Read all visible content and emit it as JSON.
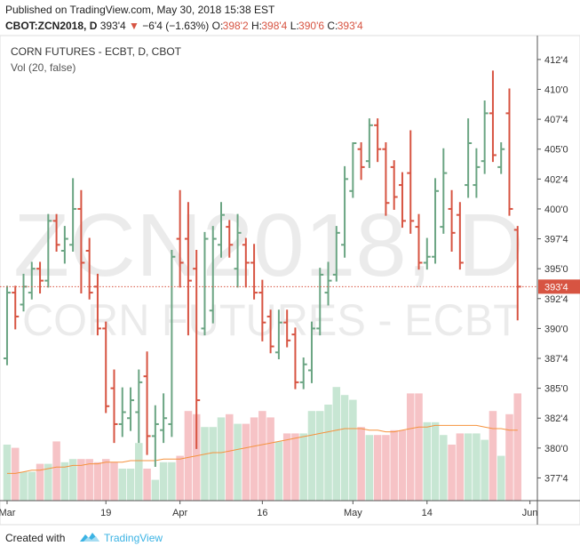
{
  "header": {
    "published": "Published on TradingView.com, May 30, 2018 15:38 EST",
    "symbol": "CBOT:ZCN2018, D",
    "last": "393'4",
    "arrow": "▼",
    "change": "−6'4 (−1.63%)",
    "ohlc": [
      {
        "key": "O:",
        "value": "398'2"
      },
      {
        "key": "H:",
        "value": "398'4"
      },
      {
        "key": "L:",
        "value": "390'6"
      },
      {
        "key": "C:",
        "value": "393'4"
      }
    ]
  },
  "footer": {
    "created": "Created with",
    "brand": "TradingView"
  },
  "chart_data": {
    "type": "ohlc",
    "title": "CORN FUTURES - ECBT, D, CBOT",
    "volume_label": "Vol (20, false)",
    "watermark": {
      "symbol": "ZCN2018, D",
      "description": "CORN FUTURES - ECBT"
    },
    "up_color": "#6ba583",
    "down_color": "#d75442",
    "volume_up_color": "#c7e6d3",
    "volume_down_color": "#f6c3c6",
    "volume_ma_color": "#f5923e",
    "xlim": [
      -0.86,
      64.4
    ],
    "xticks": [
      {
        "value": 0,
        "label": "Mar"
      },
      {
        "value": 12,
        "label": "19"
      },
      {
        "value": 21,
        "label": "Apr"
      },
      {
        "value": 31,
        "label": "16"
      },
      {
        "value": 42,
        "label": "May"
      },
      {
        "value": 51,
        "label": "14"
      },
      {
        "value": 63.5,
        "label": "Jun"
      }
    ],
    "ylim": [
      375.6,
      414.5
    ],
    "yticks": [
      {
        "value": 377.5,
        "label": "377'4"
      },
      {
        "value": 380,
        "label": "380'0"
      },
      {
        "value": 382.5,
        "label": "382'4"
      },
      {
        "value": 385,
        "label": "385'0"
      },
      {
        "value": 387.5,
        "label": "387'4"
      },
      {
        "value": 390,
        "label": "390'0"
      },
      {
        "value": 392.5,
        "label": "392'4"
      },
      {
        "value": 395,
        "label": "395'0"
      },
      {
        "value": 397.5,
        "label": "397'4"
      },
      {
        "value": 400,
        "label": "400'0"
      },
      {
        "value": 402.5,
        "label": "402'4"
      },
      {
        "value": 405,
        "label": "405'0"
      },
      {
        "value": 407.5,
        "label": "407'4"
      },
      {
        "value": 410,
        "label": "410'0"
      },
      {
        "value": 412.5,
        "label": "412'4"
      }
    ],
    "last_price": {
      "value": 393.5,
      "label": "393'4"
    },
    "grid": false,
    "open": [
      387.5,
      393,
      392,
      393,
      395,
      394,
      399,
      396.5,
      397,
      400,
      396.5,
      393.5,
      390,
      385,
      382,
      382.5,
      383,
      386,
      381,
      381.5,
      382,
      397.5,
      397.5,
      395,
      390,
      391.5,
      397,
      398.5,
      395,
      397,
      395.5,
      393,
      391,
      388,
      390.5,
      389.5,
      385.5,
      386.5,
      390,
      393,
      394.5,
      397,
      401.5,
      405,
      404,
      407,
      405,
      403.5,
      402,
      403,
      398.5,
      395.5,
      396,
      398.5,
      400,
      399.5,
      402,
      402,
      404,
      408,
      403.5,
      408,
      398.25
    ],
    "high": [
      393.5,
      393.5,
      394.5,
      395.5,
      395.5,
      399.5,
      399.5,
      398.5,
      402.5,
      401.5,
      397.5,
      394.5,
      390.5,
      386.5,
      385,
      385,
      386.5,
      388,
      383.5,
      384.5,
      396.5,
      401.5,
      400.5,
      396.5,
      398,
      398.5,
      400.5,
      399,
      399.5,
      397.5,
      397,
      394,
      391.5,
      391.5,
      391.5,
      390,
      387.5,
      390.5,
      395,
      395.5,
      398.5,
      403.5,
      405.5,
      405.5,
      407.5,
      407.5,
      405.5,
      404,
      403,
      406.5,
      399.5,
      397.5,
      402.5,
      405,
      401.5,
      400.5,
      407.5,
      405,
      409,
      411.5,
      405.5,
      410,
      398.5
    ],
    "low": [
      387,
      390,
      391.5,
      392.5,
      393,
      393.5,
      396.5,
      395.5,
      396.5,
      393,
      392.5,
      389.5,
      383,
      380.5,
      381,
      381.5,
      380.5,
      379.5,
      378.5,
      380.5,
      381,
      393.5,
      389.5,
      380,
      389.5,
      390.5,
      396,
      396,
      393.5,
      393.5,
      392.5,
      389,
      388,
      387.5,
      388.5,
      385,
      385,
      385.5,
      389.5,
      392,
      394,
      396,
      401,
      402.5,
      403.5,
      404,
      399.5,
      400,
      398.5,
      398,
      395,
      395,
      395.5,
      398,
      396.5,
      395,
      401,
      401,
      403,
      404,
      403,
      399.5,
      390.75
    ],
    "close": [
      393,
      391,
      393.5,
      395,
      394,
      399,
      397,
      397.5,
      400,
      395.5,
      393,
      390,
      383.5,
      382,
      383,
      384,
      385.5,
      381,
      382,
      382.5,
      396,
      395.5,
      394,
      384,
      397.5,
      397.5,
      399.5,
      397,
      398,
      395.5,
      393,
      390.5,
      388.5,
      390.5,
      389,
      385.5,
      387,
      390,
      394.5,
      394,
      398,
      402.5,
      405.5,
      403.5,
      407,
      405,
      400.5,
      401,
      399,
      399,
      395.5,
      396,
      401.5,
      403,
      398,
      395.5,
      405.5,
      403.5,
      408,
      404.5,
      405,
      400,
      393.5
    ],
    "volume_lim": [
      0,
      100
    ],
    "volume": [
      35,
      33,
      18,
      18,
      23,
      23,
      37,
      24,
      26,
      26,
      26,
      24,
      26,
      24,
      20,
      20,
      36,
      20,
      13,
      24,
      24,
      28,
      56,
      54,
      46,
      46,
      52,
      54,
      48,
      48,
      52,
      56,
      52,
      37,
      42,
      42,
      42,
      56,
      56,
      60,
      71,
      66,
      63,
      46,
      41,
      41,
      41,
      44,
      44,
      67,
      67,
      49,
      49,
      41,
      35,
      42,
      42,
      42,
      38,
      56,
      28,
      54,
      67
    ],
    "volume_ma": [
      17,
      17,
      18,
      19,
      19,
      20,
      21,
      21,
      22,
      22,
      23,
      23,
      24,
      24,
      24,
      25,
      25,
      25,
      25,
      26,
      26,
      26,
      27,
      28,
      29,
      30,
      30,
      31,
      32,
      33,
      34,
      35,
      36,
      37,
      38,
      39,
      40,
      41,
      42,
      43,
      44,
      45,
      45,
      45,
      44,
      44,
      43,
      43,
      44,
      45,
      46,
      46,
      47,
      47,
      47,
      47,
      47,
      47,
      46,
      45,
      45,
      44,
      44
    ]
  }
}
